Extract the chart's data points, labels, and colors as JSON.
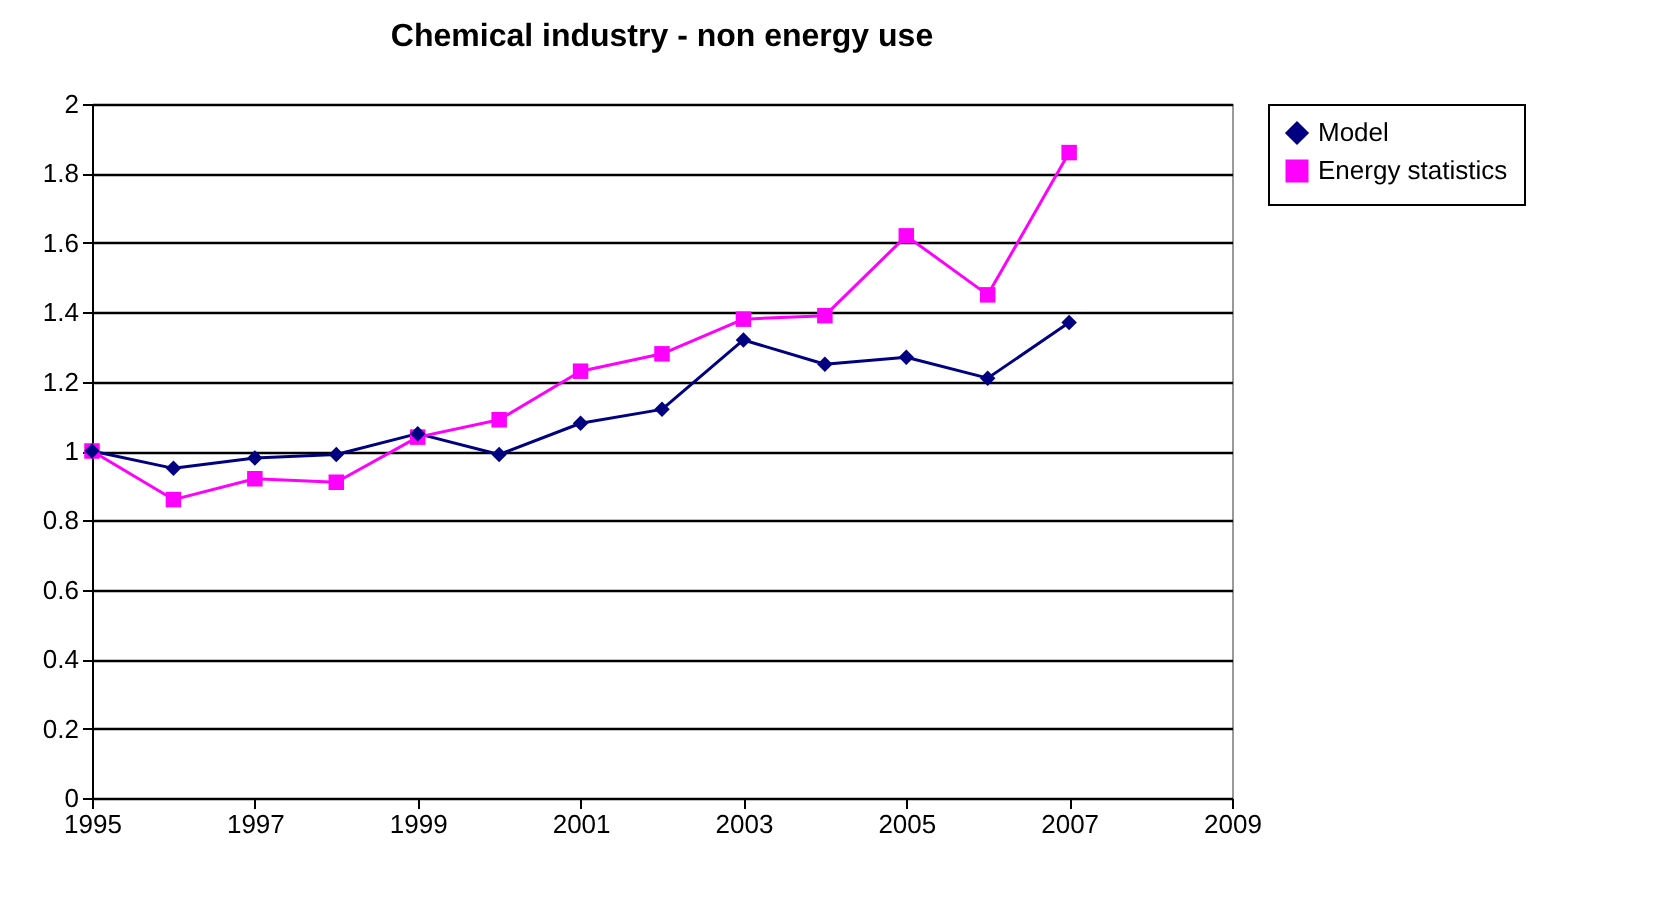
{
  "chart_data": {
    "type": "line",
    "title": "Chemical industry - non energy use",
    "x": [
      1995,
      1996,
      1997,
      1998,
      1999,
      2000,
      2001,
      2002,
      2003,
      2004,
      2005,
      2006,
      2007
    ],
    "series": [
      {
        "name": "Model",
        "color": "#000080",
        "marker": "diamond",
        "values": [
          1.0,
          0.95,
          0.98,
          0.99,
          1.05,
          0.99,
          1.08,
          1.12,
          1.32,
          1.25,
          1.27,
          1.21,
          1.37
        ]
      },
      {
        "name": "Energy statistics",
        "color": "#ff00ff",
        "marker": "square",
        "values": [
          1.0,
          0.86,
          0.92,
          0.91,
          1.04,
          1.09,
          1.23,
          1.28,
          1.38,
          1.39,
          1.62,
          1.45,
          1.86
        ]
      }
    ],
    "xlim": [
      1995,
      2009
    ],
    "xticks": [
      1995,
      1997,
      1999,
      2001,
      2003,
      2005,
      2007,
      2009
    ],
    "ylim": [
      0,
      2
    ],
    "yticks": [
      0,
      0.2,
      0.4,
      0.6,
      0.8,
      1,
      1.2,
      1.4,
      1.6,
      1.8,
      2
    ],
    "grid": "y",
    "legend": "right",
    "line_style": "solid"
  }
}
